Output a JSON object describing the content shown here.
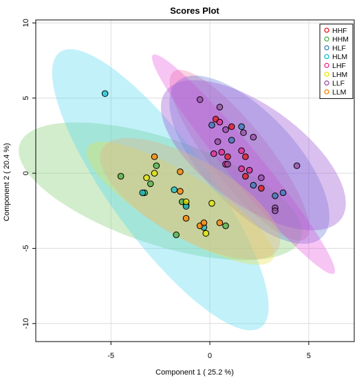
{
  "chart_data": {
    "type": "scatter",
    "title": "Scores Plot",
    "xlabel": "Component 1 ( 25.2 %)",
    "ylabel": "Component 2 ( 20.4 %)",
    "xlim": [
      -8.8,
      7.3
    ],
    "ylim": [
      -11.2,
      10.2
    ],
    "xticks": [
      -5,
      0,
      5
    ],
    "yticks": [
      -10,
      -5,
      0,
      5,
      10
    ],
    "grid": true,
    "legend_position": "top-right",
    "series": [
      {
        "name": "HHF",
        "color": "#e41a1c",
        "points": [
          [
            1.8,
            1.1
          ],
          [
            2.6,
            -1.0
          ],
          [
            1.8,
            -0.2
          ],
          [
            0.9,
            1.1
          ],
          [
            1.1,
            3.1
          ],
          [
            0.3,
            3.6
          ]
        ],
        "ellipse": {
          "cx": 1.5,
          "cy": 1.2,
          "rx": 6.5,
          "ry": 1.6,
          "angle": -60,
          "fill": "#e8628c",
          "opacity": 0.28
        }
      },
      {
        "name": "HHM",
        "color": "#4daf4a",
        "points": [
          [
            -4.5,
            -0.2
          ],
          [
            -2.7,
            0.5
          ],
          [
            -3.3,
            -1.3
          ],
          [
            -1.4,
            -1.9
          ],
          [
            0.8,
            -3.5
          ],
          [
            -1.7,
            -4.1
          ],
          [
            -1.2,
            -2.1
          ],
          [
            -3.0,
            -0.7
          ]
        ],
        "ellipse": {
          "cx": -2.5,
          "cy": -1.2,
          "rx": 7.8,
          "ry": 3.4,
          "angle": -26,
          "fill": "#8fd17f",
          "opacity": 0.4
        }
      },
      {
        "name": "HLF",
        "color": "#377eb8",
        "points": [
          [
            1.6,
            3.1
          ],
          [
            1.1,
            2.2
          ],
          [
            3.3,
            -1.5
          ],
          [
            3.7,
            -1.3
          ],
          [
            2.2,
            -0.8
          ],
          [
            0.1,
            3.2
          ]
        ],
        "ellipse": {
          "cx": 2.0,
          "cy": 0.9,
          "rx": 6.4,
          "ry": 2.6,
          "angle": -58,
          "fill": "#5b6fd9",
          "opacity": 0.33
        }
      },
      {
        "name": "HLM",
        "color": "#17becf",
        "points": [
          [
            -5.3,
            5.3
          ],
          [
            -1.8,
            -1.1
          ],
          [
            -1.2,
            -2.2
          ],
          [
            -0.3,
            -3.6
          ],
          [
            -3.4,
            -1.3
          ]
        ],
        "ellipse": {
          "cx": -2.5,
          "cy": -1.1,
          "rx": 10.5,
          "ry": 2.7,
          "angle": -62,
          "fill": "#4fd8f0",
          "opacity": 0.35
        }
      },
      {
        "name": "LHF",
        "color": "#e7298a",
        "points": [
          [
            0.5,
            3.4
          ],
          [
            1.6,
            0.3
          ],
          [
            0.6,
            1.4
          ],
          [
            0.8,
            0.6
          ],
          [
            1.6,
            1.5
          ],
          [
            2.0,
            0.2
          ],
          [
            0.2,
            1.3
          ]
        ],
        "ellipse": {
          "cx": 1.7,
          "cy": 0.6,
          "rx": 8.6,
          "ry": 0.95,
          "angle": -58,
          "fill": "#e33fd6",
          "opacity": 0.3
        }
      },
      {
        "name": "LHM",
        "color": "#e6e600",
        "points": [
          [
            -3.2,
            -0.3
          ],
          [
            -2.8,
            0.0
          ],
          [
            -1.2,
            -1.9
          ],
          [
            0.1,
            -2.0
          ],
          [
            -0.2,
            -4.0
          ]
        ],
        "ellipse": {
          "cx": -1.5,
          "cy": -2.0,
          "rx": 6.0,
          "ry": 1.8,
          "angle": -40,
          "fill": "#e5e24a",
          "opacity": 0.35
        }
      },
      {
        "name": "LLF",
        "color": "#984ea3",
        "points": [
          [
            -0.5,
            4.9
          ],
          [
            0.5,
            4.4
          ],
          [
            0.8,
            2.9
          ],
          [
            0.4,
            2.1
          ],
          [
            2.2,
            2.4
          ],
          [
            4.4,
            0.5
          ],
          [
            3.3,
            -2.3
          ],
          [
            3.3,
            -2.5
          ],
          [
            1.7,
            2.7
          ],
          [
            0.9,
            0.6
          ],
          [
            2.6,
            -0.3
          ]
        ],
        "ellipse": {
          "cx": 2.2,
          "cy": 1.2,
          "rx": 6.2,
          "ry": 2.9,
          "angle": -48,
          "fill": "#a261d8",
          "opacity": 0.4
        }
      },
      {
        "name": "LLM",
        "color": "#ff7f00",
        "points": [
          [
            -2.8,
            1.1
          ],
          [
            -1.5,
            0.1
          ],
          [
            -1.5,
            -1.2
          ],
          [
            -1.2,
            -3.0
          ],
          [
            -0.5,
            -3.5
          ],
          [
            0.5,
            -3.3
          ],
          [
            -0.3,
            -3.3
          ]
        ],
        "ellipse": {
          "cx": -1.0,
          "cy": -1.7,
          "rx": 5.6,
          "ry": 2.4,
          "angle": -40,
          "fill": "#e0b48a",
          "opacity": 0.38
        }
      }
    ]
  }
}
